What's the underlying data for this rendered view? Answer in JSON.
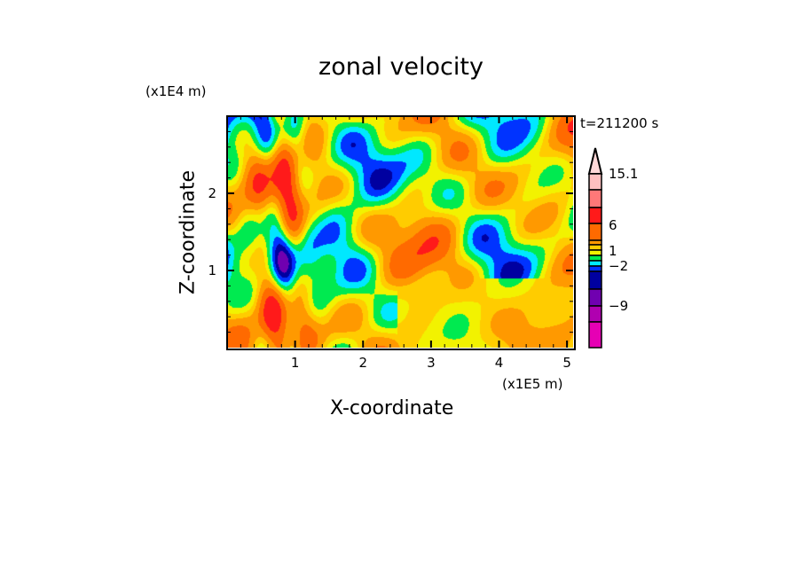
{
  "chart_data": {
    "type": "heatmap",
    "title": "zonal velocity",
    "xlabel": "X-coordinate",
    "ylabel": "Z-coordinate",
    "x_unit": "(x1E5 m)",
    "y_unit": "(x1E4 m)",
    "time_label": "t=211200 s",
    "xlim": [
      0,
      5.09
    ],
    "ylim": [
      0,
      3.0
    ],
    "xticks": [
      "1",
      "2",
      "3",
      "4",
      "5"
    ],
    "yticks": [
      "1",
      "2"
    ],
    "colorbar": {
      "labels": [
        "15.1",
        "6",
        "1",
        "−2",
        "−9"
      ],
      "colors": [
        "#ffd8d8",
        "#ffc0c0",
        "#ff7878",
        "#ff1a1a",
        "#ff6a00",
        "#ff9900",
        "#ffcc00",
        "#f2f200",
        "#00ea50",
        "#00e8ff",
        "#0033ff",
        "#0000a0",
        "#7000b0",
        "#b000b0",
        "#e600b4"
      ]
    }
  }
}
